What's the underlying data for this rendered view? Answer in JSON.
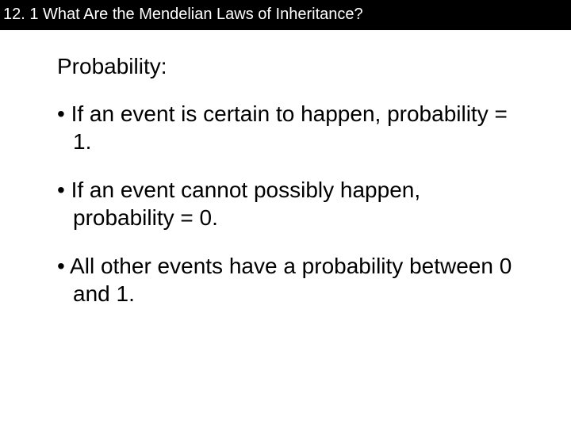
{
  "header": {
    "title": "12. 1 What Are the Mendelian Laws of Inheritance?"
  },
  "content": {
    "heading": "Probability:",
    "bullets": [
      "If an event is certain to happen, probability = 1.",
      "If an event cannot possibly happen, probability = 0.",
      "All other events have a probability between 0 and 1."
    ]
  },
  "styling": {
    "header_bg": "#000000",
    "header_fg": "#ffffff",
    "header_fontsize": 20,
    "body_bg": "#ffffff",
    "body_fg": "#000000",
    "heading_fontsize": 28,
    "bullet_fontsize": 28,
    "font_family": "Arial",
    "slide_width": 720,
    "slide_height": 540
  }
}
